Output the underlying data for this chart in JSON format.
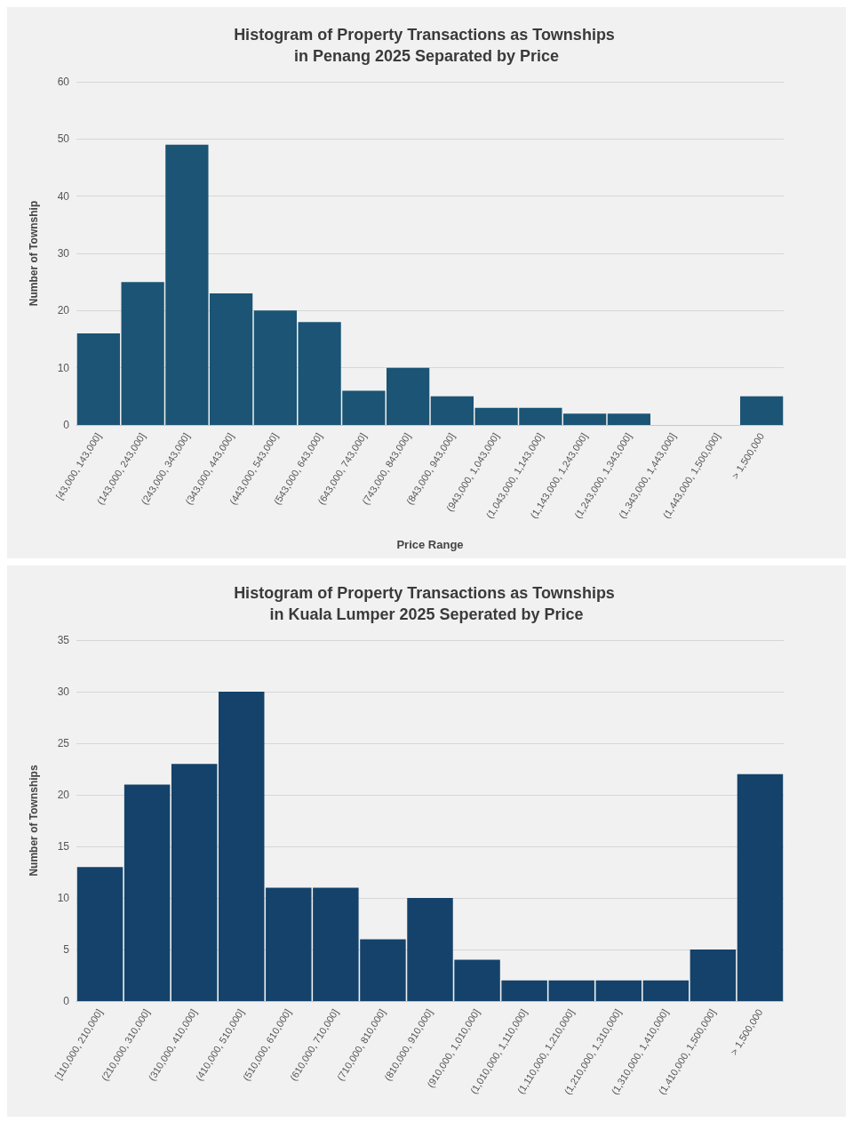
{
  "chart_data": [
    {
      "type": "bar",
      "title": "Histogram of Property Transactions as Townships in Penang 2025 Separated by Price",
      "xlabel": "Price Range",
      "ylabel": "Number of Township",
      "categories": [
        "[43,000, 143,000]",
        "(143,000, 243,000]",
        "(243,000, 343,000]",
        "(343,000, 443,000]",
        "(443,000, 543,000]",
        "(543,000, 643,000]",
        "(643,000, 743,000]",
        "(743,000, 843,000]",
        "(843,000, 943,000]",
        "(943,000, 1,043,000]",
        "(1,043,000, 1,143,000]",
        "(1,143,000, 1,243,000]",
        "(1,243,000, 1,343,000]",
        "(1,343,000, 1,443,000]",
        "(1,443,000, 1,500,000]",
        "> 1,500,000"
      ],
      "values": [
        16,
        25,
        49,
        23,
        20,
        18,
        6,
        10,
        5,
        3,
        3,
        2,
        2,
        0,
        0,
        5
      ],
      "color": "#1b5474",
      "ylim": [
        0,
        60
      ],
      "yticks": [
        0,
        10,
        20,
        30,
        40,
        50,
        60
      ],
      "grid": "y"
    },
    {
      "type": "bar",
      "title": "Histogram of Property Transactions as Townships in Kuala Lumper 2025 Seperated by Price",
      "ylabel": "Number of Townships",
      "categories": [
        "[110,000, 210,000]",
        "(210,000, 310,000]",
        "(310,000, 410,000]",
        "(410,000, 510,000]",
        "(510,000, 610,000]",
        "(610,000, 710,000]",
        "(710,000, 810,000]",
        "(810,000, 910,000]",
        "(910,000, 1,010,000]",
        "(1,010,000, 1,110,000]",
        "(1,110,000, 1,210,000]",
        "(1,210,000, 1,310,000]",
        "(1,310,000, 1,410,000]",
        "(1,410,000, 1,500,000]",
        "> 1,500,000"
      ],
      "values": [
        13,
        21,
        23,
        30,
        11,
        11,
        6,
        10,
        4,
        2,
        2,
        2,
        2,
        5,
        22
      ],
      "color": "#14426a",
      "ylim": [
        0,
        35
      ],
      "yticks": [
        0,
        5,
        10,
        15,
        20,
        25,
        30,
        35
      ],
      "grid": "y"
    }
  ]
}
